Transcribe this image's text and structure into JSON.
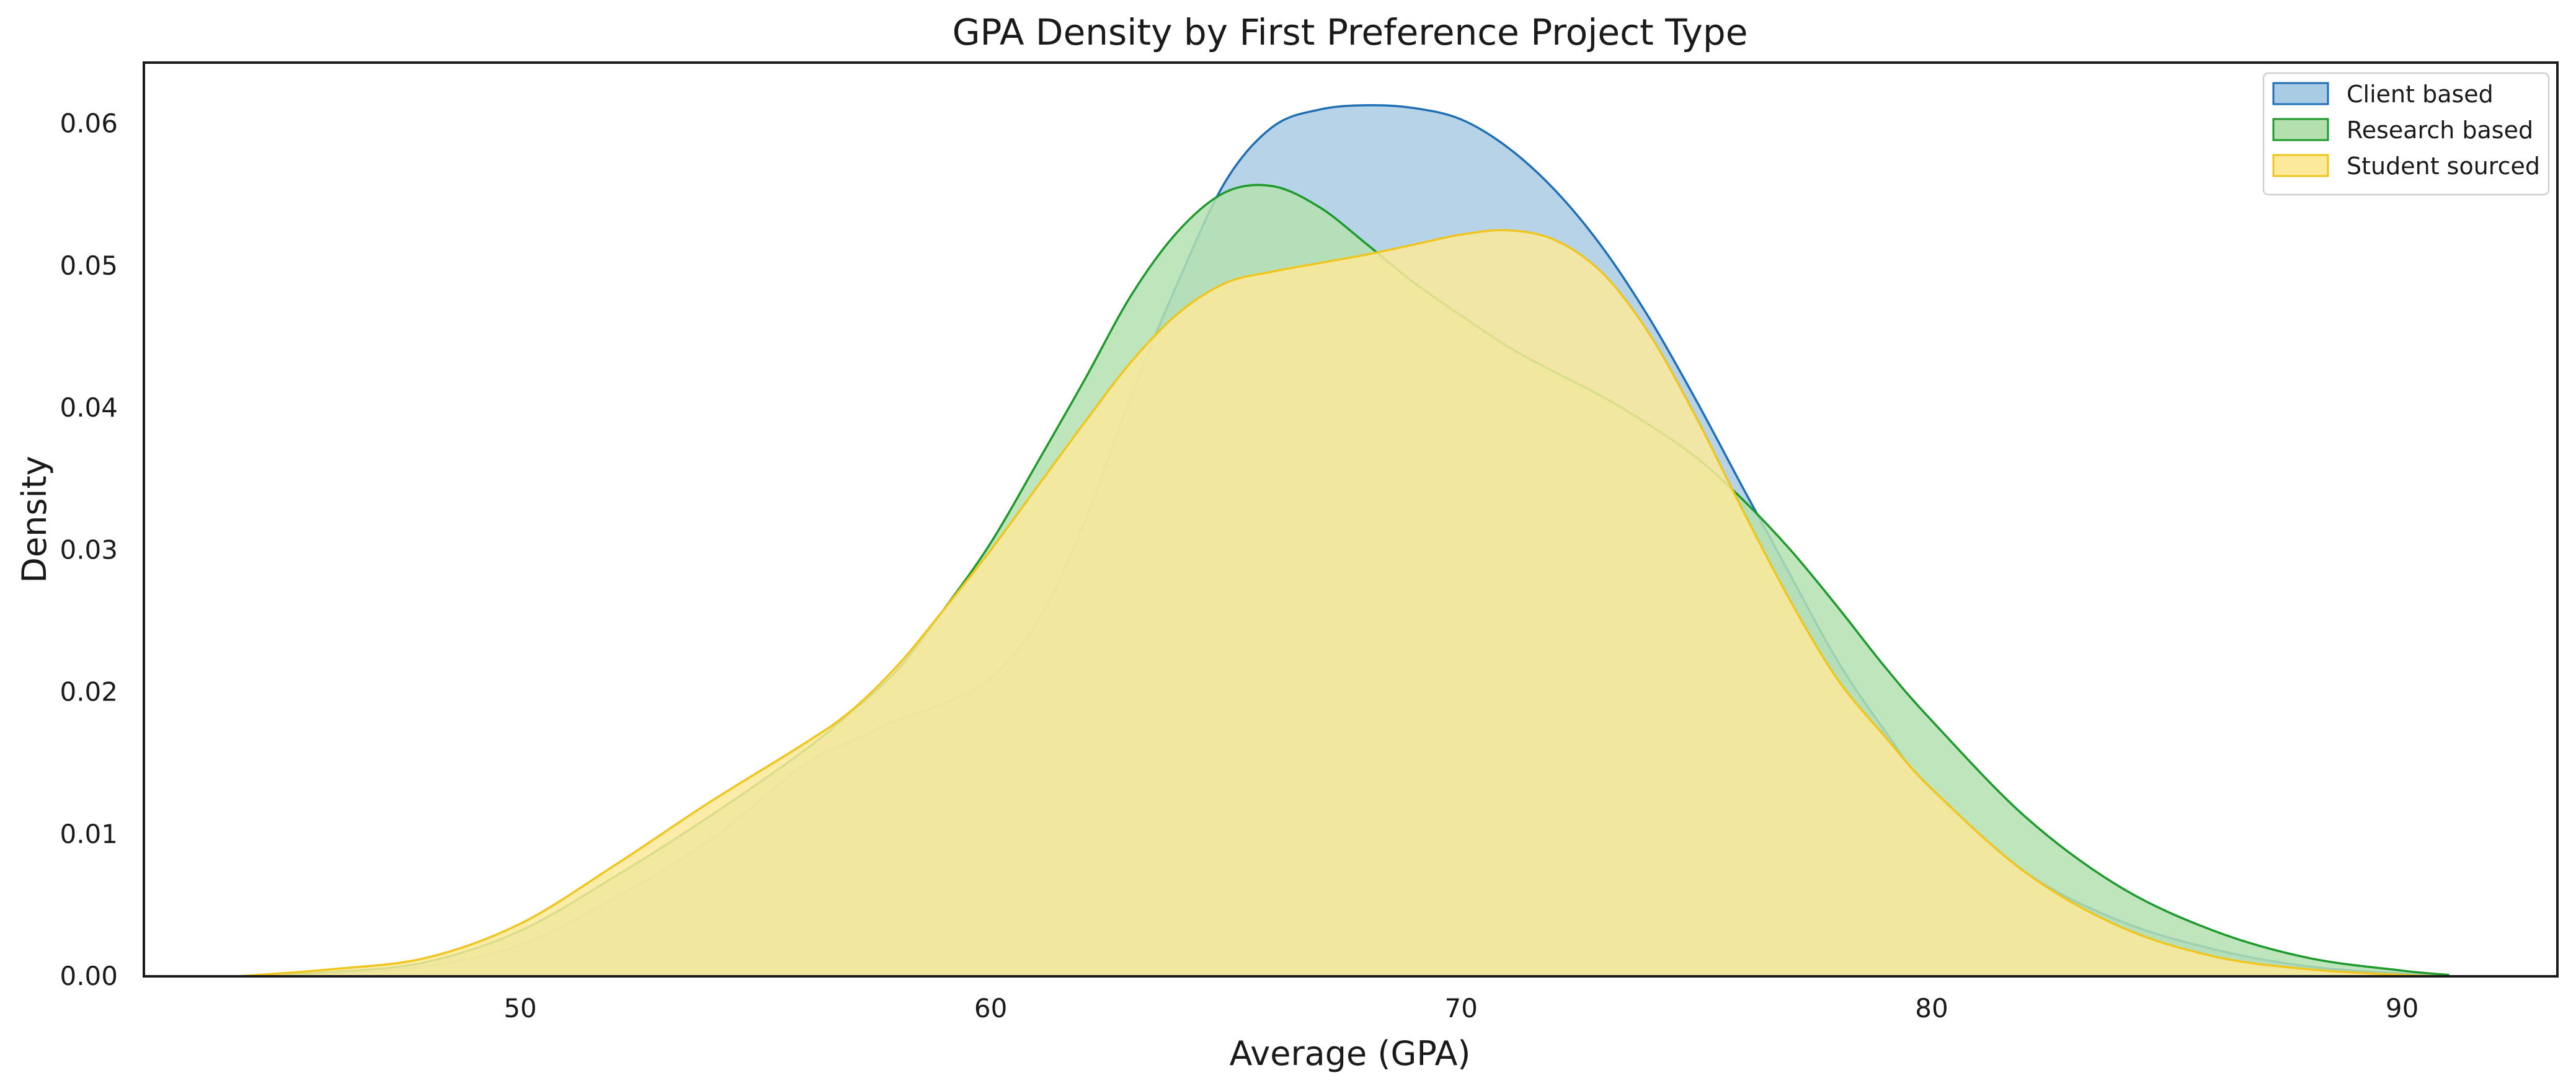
{
  "chart_data": {
    "type": "area",
    "title": "GPA Density by First Preference Project Type",
    "xlabel": "Average (GPA)",
    "ylabel": "Density",
    "xlim": [
      42,
      93.3
    ],
    "ylim": [
      0,
      0.0643
    ],
    "xticks": [
      50,
      60,
      70,
      80,
      90
    ],
    "yticks": [
      0.0,
      0.01,
      0.02,
      0.03,
      0.04,
      0.05,
      0.06
    ],
    "ytick_labels": [
      "0.00",
      "0.01",
      "0.02",
      "0.03",
      "0.04",
      "0.05",
      "0.06"
    ],
    "grid": false,
    "legend_position": "top-right",
    "x": [
      44,
      46,
      48,
      50,
      52,
      54,
      56,
      57,
      58,
      59,
      60,
      61,
      62,
      63,
      64,
      65,
      66,
      67,
      68,
      69,
      70,
      71,
      72,
      73,
      74,
      75,
      76,
      77,
      78,
      79,
      80,
      82,
      84,
      86,
      88,
      90,
      91
    ],
    "series": [
      {
        "name": "Client based",
        "color": "#1f6fb4",
        "fill": "#a9cbe3",
        "values": [
          0.0,
          0.0002,
          0.0007,
          0.0022,
          0.0055,
          0.0095,
          0.0148,
          0.0165,
          0.018,
          0.0192,
          0.021,
          0.025,
          0.032,
          0.041,
          0.049,
          0.056,
          0.0598,
          0.061,
          0.0613,
          0.0611,
          0.0603,
          0.0583,
          0.0553,
          0.0513,
          0.0463,
          0.0405,
          0.0343,
          0.0282,
          0.0222,
          0.0173,
          0.013,
          0.0073,
          0.0039,
          0.0019,
          0.0007,
          0.0002,
          0.0001
        ]
      },
      {
        "name": "Research based",
        "color": "#1e9a2c",
        "fill": "#b4e0b0",
        "values": [
          0.0,
          0.0003,
          0.001,
          0.0032,
          0.007,
          0.0112,
          0.0158,
          0.0185,
          0.0215,
          0.0258,
          0.0305,
          0.0362,
          0.042,
          0.048,
          0.0525,
          0.0552,
          0.0556,
          0.0541,
          0.0515,
          0.0488,
          0.0465,
          0.0443,
          0.0425,
          0.0408,
          0.0388,
          0.0365,
          0.0335,
          0.03,
          0.026,
          0.0218,
          0.018,
          0.0112,
          0.0063,
          0.0032,
          0.0013,
          0.0004,
          0.0001
        ]
      },
      {
        "name": "Student sourced",
        "color": "#f0c61e",
        "fill": "#fce99a",
        "values": [
          0.0,
          0.0005,
          0.0013,
          0.0037,
          0.0078,
          0.0122,
          0.0163,
          0.0186,
          0.0218,
          0.0258,
          0.03,
          0.0345,
          0.039,
          0.0433,
          0.0467,
          0.0488,
          0.0496,
          0.0502,
          0.0508,
          0.0515,
          0.0522,
          0.0525,
          0.0518,
          0.0495,
          0.0452,
          0.0393,
          0.0327,
          0.0264,
          0.0209,
          0.0169,
          0.0132,
          0.0073,
          0.0035,
          0.0014,
          0.0005,
          0.0001,
          0.0
        ]
      }
    ]
  }
}
